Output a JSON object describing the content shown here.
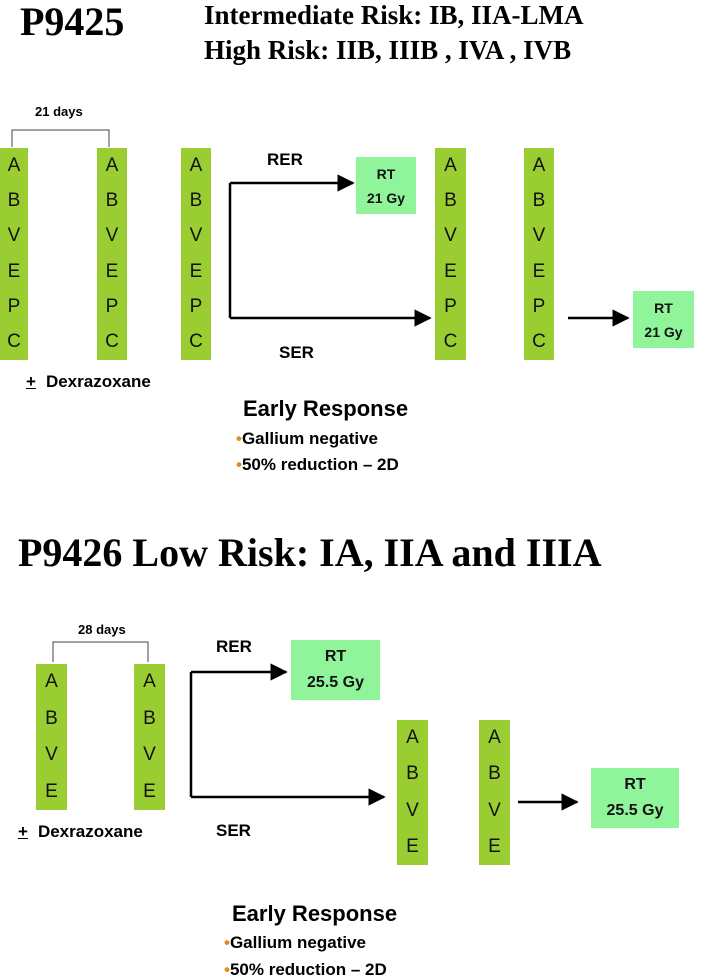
{
  "section1": {
    "trial": "P9425",
    "line1": "Intermediate Risk: IB, IIA-LMA",
    "line2": "High Risk:  IIB, IIIB , IVA , IVB",
    "cycle_interval": "21 days",
    "regimen_letters": [
      "A",
      "B",
      "V",
      "E",
      "P",
      "C"
    ],
    "rer_label": "RER",
    "ser_label": "SER",
    "rt_mid": {
      "label": "RT",
      "dose": "21 Gy"
    },
    "rt_end": {
      "label": "RT",
      "dose": "21 Gy"
    },
    "dexrazoxane": {
      "sign": "+",
      "text": "Dexrazoxane"
    },
    "early_response": {
      "title": "Early Response",
      "criteria": [
        "Gallium negative",
        "50% reduction – 2D"
      ]
    }
  },
  "section2": {
    "title": "P9426 Low Risk: IA, IIA and IIIA",
    "cycle_interval": "28 days",
    "regimen_letters": [
      "A",
      "B",
      "V",
      "E"
    ],
    "rer_label": "RER",
    "ser_label": "SER",
    "rt_rer": {
      "label": "RT",
      "dose": "25.5 Gy"
    },
    "rt_ser": {
      "label": "RT",
      "dose": "25.5 Gy"
    },
    "dexrazoxane": {
      "sign": "+",
      "text": "Dexrazoxane"
    },
    "early_response": {
      "title": "Early Response",
      "criteria": [
        "Gallium negative",
        "50% reduction – 2D"
      ]
    }
  },
  "colors": {
    "chemo_block": "#9ACD32",
    "rt_block": "#90F59A",
    "bullet": "#E08A1E"
  }
}
